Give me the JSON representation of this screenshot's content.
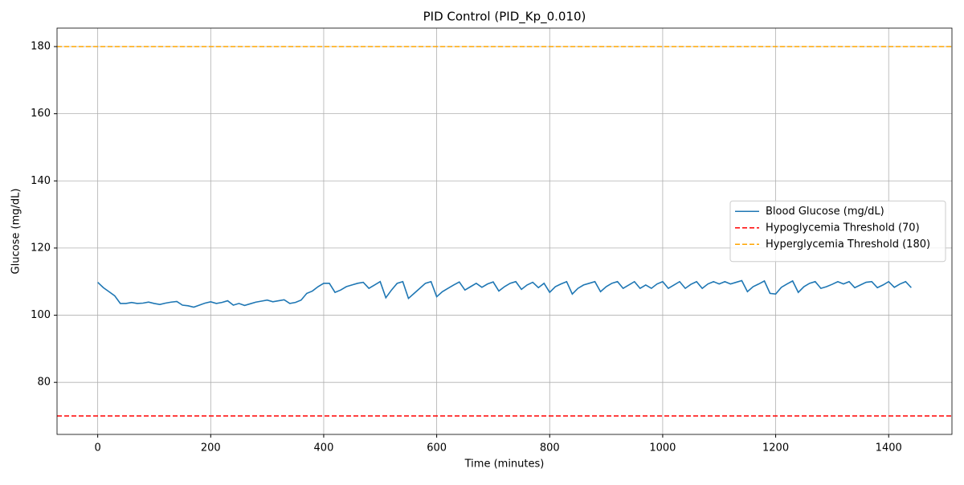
{
  "chart_data": {
    "type": "line",
    "title": "PID Control (PID_Kp_0.010)",
    "x_label": "Time (minutes)",
    "y_label": "Glucose (mg/dL)",
    "x": [
      0,
      10,
      20,
      30,
      40,
      50,
      60,
      70,
      80,
      90,
      100,
      110,
      120,
      130,
      140,
      150,
      160,
      170,
      180,
      190,
      200,
      210,
      220,
      230,
      240,
      250,
      260,
      270,
      280,
      290,
      300,
      310,
      320,
      330,
      340,
      350,
      360,
      370,
      380,
      390,
      400,
      410,
      420,
      430,
      440,
      450,
      460,
      470,
      480,
      490,
      500,
      510,
      520,
      530,
      540,
      550,
      560,
      570,
      580,
      590,
      600,
      610,
      620,
      630,
      640,
      650,
      660,
      670,
      680,
      690,
      700,
      710,
      720,
      730,
      740,
      750,
      760,
      770,
      780,
      790,
      800,
      810,
      820,
      830,
      840,
      850,
      860,
      870,
      880,
      890,
      900,
      910,
      920,
      930,
      940,
      950,
      960,
      970,
      980,
      990,
      1000,
      1010,
      1020,
      1030,
      1040,
      1050,
      1060,
      1070,
      1080,
      1090,
      1100,
      1110,
      1120,
      1130,
      1140,
      1150,
      1160,
      1170,
      1180,
      1190,
      1200,
      1210,
      1220,
      1230,
      1240,
      1250,
      1260,
      1270,
      1280,
      1290,
      1300,
      1310,
      1320,
      1330,
      1340,
      1350,
      1360,
      1370,
      1380,
      1390,
      1400,
      1410,
      1420,
      1430,
      1440
    ],
    "series": [
      {
        "name": "Blood Glucose (mg/dL)",
        "color": "#1f77b4",
        "style": "solid",
        "values": [
          109.8,
          108.2,
          107,
          105.8,
          103.5,
          103.5,
          103.8,
          103.5,
          103.6,
          103.9,
          103.5,
          103.2,
          103.6,
          103.9,
          104.1,
          103,
          102.8,
          102.4,
          103,
          103.6,
          104,
          103.5,
          103.8,
          104.3,
          103,
          103.5,
          102.9,
          103.4,
          103.9,
          104.2,
          104.5,
          104,
          104.3,
          104.6,
          103.5,
          103.8,
          104.5,
          106.5,
          107.2,
          108.5,
          109.5,
          109.5,
          106.8,
          107.5,
          108.5,
          109,
          109.5,
          109.8,
          108,
          109,
          110,
          105.2,
          107.5,
          109.5,
          110,
          105,
          106.5,
          108,
          109.5,
          110,
          105.5,
          107,
          108,
          109,
          109.9,
          107.5,
          108.5,
          109.5,
          108.3,
          109.3,
          109.9,
          107.2,
          108.5,
          109.5,
          110,
          107.7,
          109,
          109.8,
          108.2,
          109.5,
          106.8,
          108.5,
          109.3,
          110,
          106.3,
          108,
          109,
          109.5,
          110,
          107,
          108.5,
          109.5,
          110,
          108,
          109,
          110,
          108,
          109,
          108,
          109.3,
          110,
          108,
          109,
          110,
          108,
          109.2,
          110,
          108,
          109.3,
          110,
          109.3,
          110,
          109.3,
          109.8,
          110.3,
          107,
          108.5,
          109.3,
          110.2,
          106.5,
          106.3,
          108.3,
          109.3,
          110.2,
          106.8,
          108.5,
          109.5,
          110,
          108,
          108.5,
          109.2,
          110,
          109.3,
          110,
          108.2,
          109,
          109.8,
          110,
          108.2,
          109,
          110,
          108.3,
          109.3,
          110,
          108.2
        ]
      }
    ],
    "hlines": [
      {
        "name": "Hypoglycemia Threshold (70)",
        "color": "#ff0000",
        "style": "dashed",
        "value": 70
      },
      {
        "name": "Hyperglycemia Threshold (180)",
        "color": "#ffa500",
        "style": "dashed",
        "value": 180
      }
    ],
    "xlim": [
      -72,
      1512
    ],
    "ylim": [
      64.5,
      185.5
    ],
    "xticks": [
      0,
      200,
      400,
      600,
      800,
      1000,
      1200,
      1400
    ],
    "yticks": [
      80,
      100,
      120,
      140,
      160,
      180
    ],
    "grid": true,
    "legend": "center right"
  }
}
